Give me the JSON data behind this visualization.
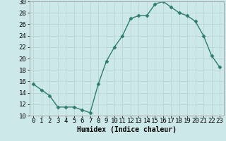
{
  "xlabel": "Humidex (Indice chaleur)",
  "x": [
    0,
    1,
    2,
    3,
    4,
    5,
    6,
    7,
    8,
    9,
    10,
    11,
    12,
    13,
    14,
    15,
    16,
    17,
    18,
    19,
    20,
    21,
    22,
    23
  ],
  "y": [
    15.5,
    14.5,
    13.5,
    11.5,
    11.5,
    11.5,
    11.0,
    10.5,
    15.5,
    19.5,
    22.0,
    24.0,
    27.0,
    27.5,
    27.5,
    29.5,
    30.0,
    29.0,
    28.0,
    27.5,
    26.5,
    24.0,
    20.5,
    18.5
  ],
  "ylim": [
    10,
    30
  ],
  "yticks": [
    10,
    12,
    14,
    16,
    18,
    20,
    22,
    24,
    26,
    28,
    30
  ],
  "line_color": "#2e7d6e",
  "marker": "D",
  "marker_size": 2.5,
  "bg_color": "#cce8e8",
  "grid_color": "#b8d4d4",
  "xlabel_fontsize": 7,
  "tick_fontsize": 6.5
}
